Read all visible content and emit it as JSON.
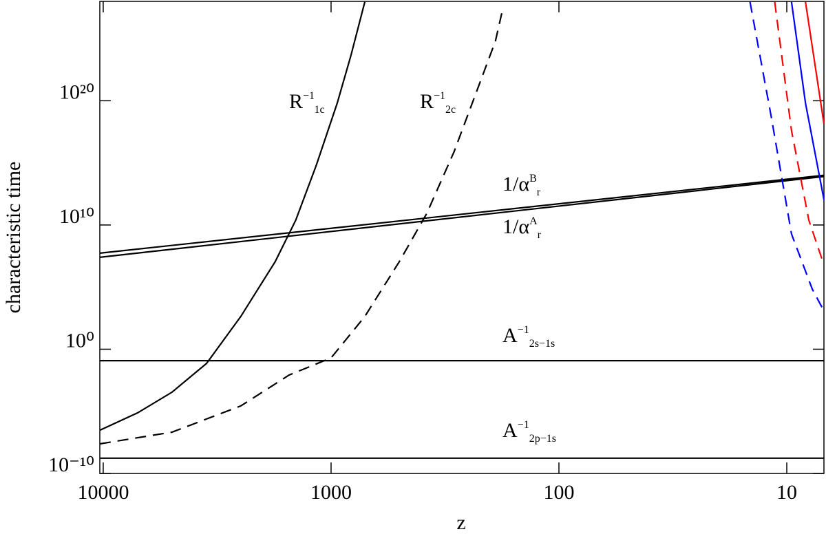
{
  "chart_data": {
    "type": "line",
    "xlabel": "z",
    "ylabel": "characteristic time",
    "xlog": true,
    "ylog": true,
    "xlim": [
      10350,
      6.87
    ],
    "ylim": [
      1e-10,
      1e+28
    ],
    "xticks": [
      10000,
      1000,
      100,
      10
    ],
    "yticks": [
      {
        "value": 1e-10,
        "label": "10⁻¹⁰"
      },
      {
        "value": 1,
        "label": "10⁰"
      },
      {
        "value": 10000000000.0,
        "label": "10¹⁰"
      },
      {
        "value": 1e+20,
        "label": "10²⁰"
      }
    ],
    "series": [
      {
        "name": "R",
        "name_sup": "−1",
        "name_sub": "1c",
        "color": "#000000",
        "dash": false,
        "x": [
          10350,
          7060,
          4990,
          3520,
          2490,
          1760,
          1430,
          1160,
          940,
          817,
          711
        ],
        "values": [
          3e-07,
          7.6e-06,
          0.00035,
          0.072,
          430,
          11000000.0,
          24000000000.0,
          660000000000000.0,
          6.4e+19,
          4.8e+23,
          9e+27
        ]
      },
      {
        "name": "R",
        "name_sup": "−1",
        "name_sub": "2c",
        "color": "#000000",
        "dash": true,
        "x": [
          10350,
          4990,
          2490,
          1528,
          1000,
          711,
          502,
          380,
          288,
          234,
          190,
          177
        ],
        "values": [
          2.4e-08,
          2.1e-07,
          2.7e-05,
          0.0083,
          0.2,
          430,
          11000000.0,
          87000000000.0,
          8500000000000000.0,
          2.3e+20,
          6.2e+24,
          1.9e+27
        ]
      },
      {
        "name": "1/α",
        "name_sup": "B",
        "name_sub": "r",
        "color": "#000000",
        "dash": false,
        "x": [
          10350,
          6.87
        ],
        "values": [
          54000000.0,
          100000000000000.0
        ]
      },
      {
        "name": "1/α",
        "name_sup": "A",
        "name_sub": "r",
        "color": "#000000",
        "dash": false,
        "x": [
          10350,
          6.87
        ],
        "values": [
          25000000.0,
          80000000000000.0
        ]
      },
      {
        "name": "A",
        "name_sup": "−1",
        "name_sub": "2s−1s",
        "color": "#000000",
        "dash": false,
        "x": [
          10350,
          6.87
        ],
        "values": [
          0.12,
          0.12
        ]
      },
      {
        "name": "A",
        "name_sup": "−1",
        "name_sub": "2p−1s",
        "color": "#000000",
        "dash": false,
        "x": [
          10350,
          6.87
        ],
        "values": [
          1.7e-09,
          1.7e-09
        ]
      },
      {
        "color": "#0000ff",
        "dash": true,
        "x": [
          14.5,
          11.7,
          9.53,
          7.73,
          6.87
        ],
        "values": [
          9e+27,
          5e+18,
          1900000000.0,
          70000.0,
          1200.0
        ]
      },
      {
        "color": "#ff0000",
        "dash": true,
        "x": [
          11.3,
          9.53,
          8.0,
          6.87
        ],
        "values": [
          9e+27,
          3.9e+17,
          24000000000.0,
          6200000.0
        ]
      },
      {
        "color": "#0000ff",
        "dash": false,
        "x": [
          9.53,
          8.28,
          6.87
        ],
        "values": [
          9e+27,
          6.5e+19,
          1100000000000.0
        ]
      },
      {
        "color": "#ff0000",
        "dash": false,
        "x": [
          8.28,
          6.87
        ],
        "values": [
          9e+27,
          1.4e+18
        ]
      }
    ]
  }
}
